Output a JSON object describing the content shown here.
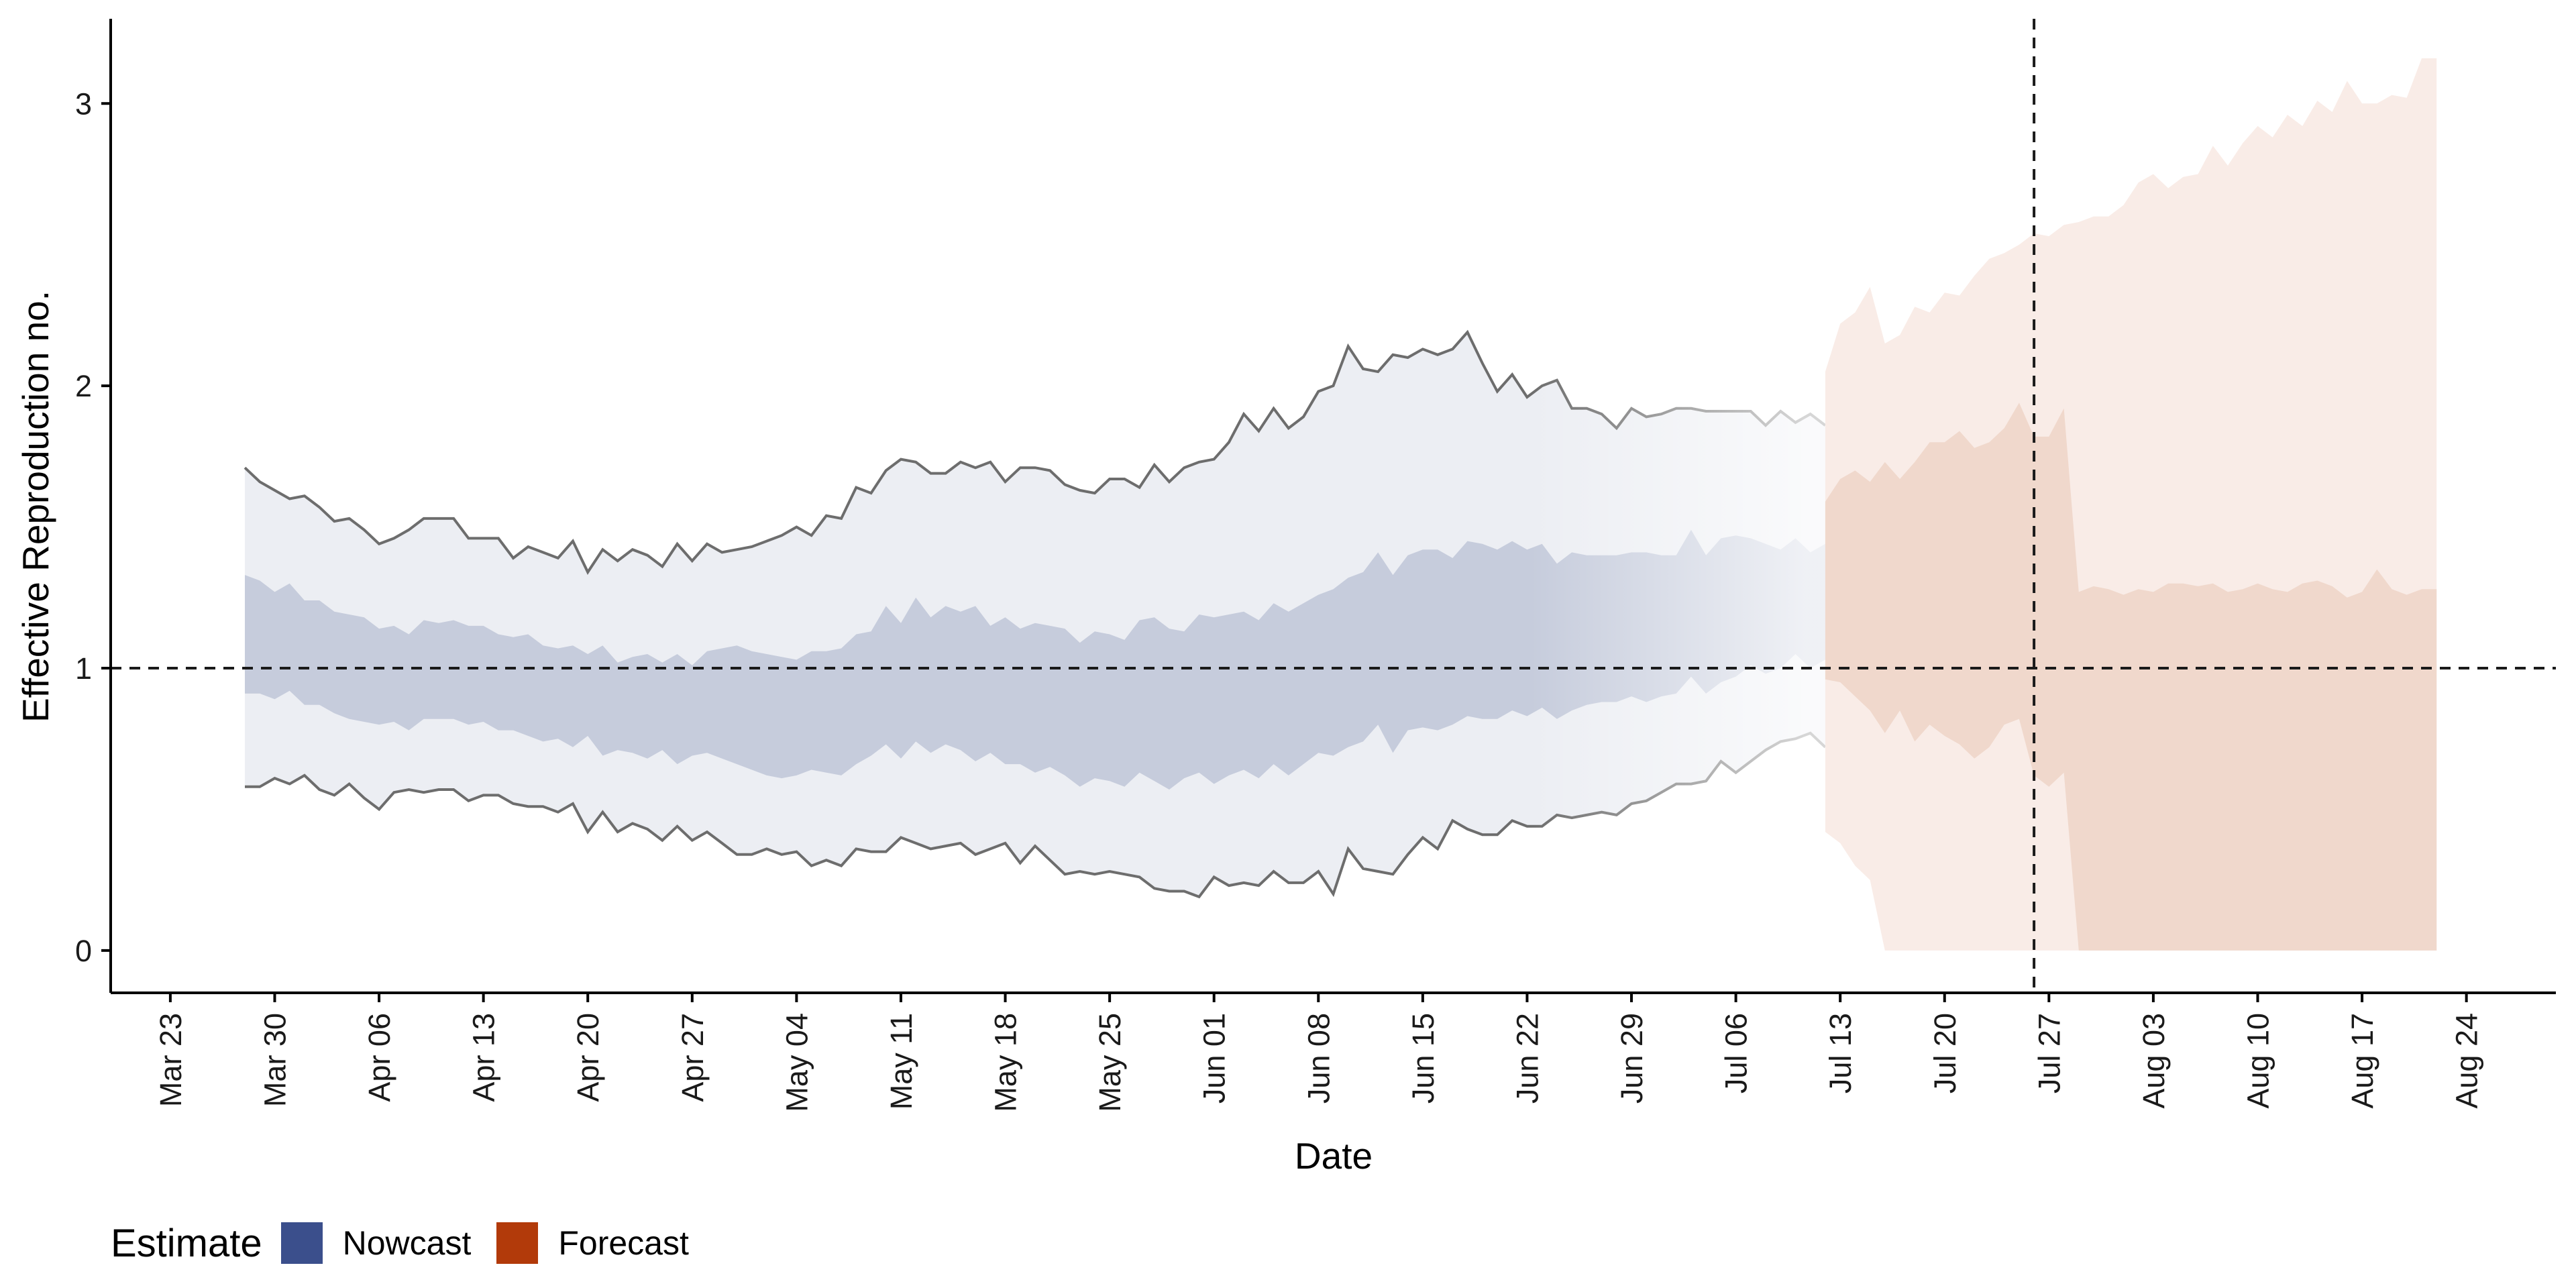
{
  "chart_data": {
    "type": "area",
    "xlabel": "Date",
    "ylabel": "Effective Reproduction no.",
    "x_start": "2020-03-28",
    "xlim": [
      "2020-03-19",
      "2020-08-30"
    ],
    "ylim": [
      -0.15,
      3.3
    ],
    "y_ticks": [
      0,
      1,
      2,
      3
    ],
    "x_tick_labels": [
      "Mar 23",
      "Mar 30",
      "Apr 06",
      "Apr 13",
      "Apr 20",
      "Apr 27",
      "May 04",
      "May 11",
      "May 18",
      "May 25",
      "Jun 01",
      "Jun 08",
      "Jun 15",
      "Jun 22",
      "Jun 29",
      "Jul 06",
      "Jul 13",
      "Jul 20",
      "Jul 27",
      "Aug 03",
      "Aug 10",
      "Aug 17",
      "Aug 24"
    ],
    "reference_lines": {
      "horizontal_y": 1,
      "vertical_date": "2020-07-26"
    },
    "legend": {
      "title": "Estimate",
      "position": "bottom-left",
      "items": [
        {
          "label": "Nowcast",
          "color": "#3b4f8c"
        },
        {
          "label": "Forecast",
          "color": "#b23a0a"
        }
      ]
    },
    "colors": {
      "nowcast_outer": "#eceef3",
      "nowcast_inner": "#c6ccdc",
      "forecast_outer": "#f9ece7",
      "forecast_inner": "#f0d8cc",
      "ci_line": "#6d6d6d",
      "reference": "#1a1a1a",
      "axis": "#000000"
    },
    "series": [
      {
        "name": "Nowcast",
        "kind": "nowcast",
        "outer_upper": [
          1.71,
          1.66,
          1.63,
          1.6,
          1.61,
          1.57,
          1.52,
          1.53,
          1.49,
          1.44,
          1.46,
          1.49,
          1.53,
          1.53,
          1.53,
          1.46,
          1.46,
          1.46,
          1.39,
          1.43,
          1.41,
          1.39,
          1.45,
          1.34,
          1.42,
          1.38,
          1.42,
          1.4,
          1.36,
          1.44,
          1.38,
          1.44,
          1.41,
          1.42,
          1.43,
          1.45,
          1.47,
          1.5,
          1.47,
          1.54,
          1.53,
          1.64,
          1.62,
          1.7,
          1.74,
          1.73,
          1.69,
          1.69,
          1.73,
          1.71,
          1.73,
          1.66,
          1.71,
          1.71,
          1.7,
          1.65,
          1.63,
          1.62,
          1.67,
          1.67,
          1.64,
          1.72,
          1.66,
          1.71,
          1.73,
          1.74,
          1.8,
          1.9,
          1.84,
          1.92,
          1.85,
          1.89,
          1.98,
          2.0,
          2.14,
          2.06,
          2.05,
          2.11,
          2.1,
          2.13,
          2.11,
          2.13,
          2.19,
          2.08,
          1.98,
          2.04,
          1.96,
          2.0,
          2.02,
          1.92,
          1.92,
          1.9,
          1.85,
          1.92,
          1.89,
          1.9,
          1.92,
          1.92,
          1.91,
          1.91,
          1.91,
          1.91,
          1.86,
          1.91,
          1.87,
          1.9,
          1.86
        ],
        "inner_upper": [
          1.33,
          1.31,
          1.27,
          1.3,
          1.24,
          1.24,
          1.2,
          1.19,
          1.18,
          1.14,
          1.15,
          1.12,
          1.17,
          1.16,
          1.17,
          1.15,
          1.15,
          1.12,
          1.11,
          1.12,
          1.08,
          1.07,
          1.08,
          1.05,
          1.08,
          1.02,
          1.04,
          1.05,
          1.02,
          1.05,
          1.01,
          1.06,
          1.07,
          1.08,
          1.06,
          1.05,
          1.04,
          1.03,
          1.06,
          1.06,
          1.07,
          1.12,
          1.13,
          1.22,
          1.16,
          1.25,
          1.18,
          1.22,
          1.2,
          1.22,
          1.15,
          1.18,
          1.14,
          1.16,
          1.15,
          1.14,
          1.09,
          1.13,
          1.12,
          1.1,
          1.17,
          1.18,
          1.14,
          1.13,
          1.19,
          1.18,
          1.19,
          1.2,
          1.17,
          1.23,
          1.2,
          1.23,
          1.26,
          1.28,
          1.32,
          1.34,
          1.41,
          1.33,
          1.4,
          1.42,
          1.42,
          1.39,
          1.45,
          1.44,
          1.42,
          1.45,
          1.42,
          1.44,
          1.37,
          1.41,
          1.4,
          1.4,
          1.4,
          1.41,
          1.41,
          1.4,
          1.4,
          1.49,
          1.4,
          1.46,
          1.47,
          1.46,
          1.44,
          1.42,
          1.46,
          1.41,
          1.44
        ],
        "inner_lower": [
          0.91,
          0.91,
          0.89,
          0.92,
          0.87,
          0.87,
          0.84,
          0.82,
          0.81,
          0.8,
          0.81,
          0.78,
          0.82,
          0.82,
          0.82,
          0.8,
          0.81,
          0.78,
          0.78,
          0.76,
          0.74,
          0.75,
          0.72,
          0.76,
          0.69,
          0.71,
          0.7,
          0.68,
          0.71,
          0.66,
          0.69,
          0.7,
          0.68,
          0.66,
          0.64,
          0.62,
          0.61,
          0.62,
          0.64,
          0.63,
          0.62,
          0.66,
          0.69,
          0.73,
          0.68,
          0.74,
          0.7,
          0.73,
          0.71,
          0.67,
          0.7,
          0.66,
          0.66,
          0.63,
          0.65,
          0.62,
          0.58,
          0.61,
          0.6,
          0.58,
          0.63,
          0.6,
          0.57,
          0.61,
          0.63,
          0.59,
          0.62,
          0.64,
          0.61,
          0.66,
          0.62,
          0.66,
          0.7,
          0.69,
          0.72,
          0.74,
          0.8,
          0.7,
          0.78,
          0.79,
          0.78,
          0.8,
          0.83,
          0.82,
          0.82,
          0.85,
          0.83,
          0.86,
          0.82,
          0.85,
          0.87,
          0.88,
          0.88,
          0.9,
          0.88,
          0.9,
          0.91,
          0.97,
          0.91,
          0.95,
          0.97,
          1.01,
          0.98,
          1.0,
          1.05,
          1.0,
          1.03
        ],
        "outer_lower": [
          0.58,
          0.58,
          0.61,
          0.59,
          0.62,
          0.57,
          0.55,
          0.59,
          0.54,
          0.5,
          0.56,
          0.57,
          0.56,
          0.57,
          0.57,
          0.53,
          0.55,
          0.55,
          0.52,
          0.51,
          0.51,
          0.49,
          0.52,
          0.42,
          0.49,
          0.42,
          0.45,
          0.43,
          0.39,
          0.44,
          0.39,
          0.42,
          0.38,
          0.34,
          0.34,
          0.36,
          0.34,
          0.35,
          0.3,
          0.32,
          0.3,
          0.36,
          0.35,
          0.35,
          0.4,
          0.38,
          0.36,
          0.37,
          0.38,
          0.34,
          0.36,
          0.38,
          0.31,
          0.37,
          0.32,
          0.27,
          0.28,
          0.27,
          0.28,
          0.27,
          0.26,
          0.22,
          0.21,
          0.21,
          0.19,
          0.26,
          0.23,
          0.24,
          0.23,
          0.28,
          0.24,
          0.24,
          0.28,
          0.2,
          0.36,
          0.29,
          0.28,
          0.27,
          0.34,
          0.4,
          0.36,
          0.46,
          0.43,
          0.41,
          0.41,
          0.46,
          0.44,
          0.44,
          0.48,
          0.47,
          0.48,
          0.49,
          0.48,
          0.52,
          0.53,
          0.56,
          0.59,
          0.59,
          0.6,
          0.67,
          0.63,
          0.67,
          0.71,
          0.74,
          0.75,
          0.77,
          0.72
        ]
      },
      {
        "name": "Forecast",
        "kind": "forecast",
        "x_start": "2020-07-12",
        "outer_upper": [
          2.05,
          2.22,
          2.26,
          2.35,
          2.15,
          2.18,
          2.28,
          2.26,
          2.33,
          2.32,
          2.39,
          2.45,
          2.47,
          2.5,
          2.54,
          2.53,
          2.57,
          2.58,
          2.6,
          2.6,
          2.64,
          2.72,
          2.75,
          2.7,
          2.74,
          2.75,
          2.85,
          2.78,
          2.86,
          2.92,
          2.88,
          2.96,
          2.92,
          3.01,
          2.97,
          3.08,
          3.0,
          3.0,
          3.03,
          3.02,
          3.16,
          3.16
        ],
        "inner_upper": [
          1.59,
          1.67,
          1.7,
          1.66,
          1.73,
          1.67,
          1.73,
          1.8,
          1.8,
          1.84,
          1.78,
          1.8,
          1.85,
          1.94,
          1.82,
          1.82,
          1.92,
          1.27,
          1.29,
          1.28,
          1.26,
          1.28,
          1.27,
          1.3,
          1.3,
          1.29,
          1.3,
          1.27,
          1.28,
          1.3,
          1.28,
          1.27,
          1.3,
          1.31,
          1.29,
          1.25,
          1.27,
          1.35,
          1.28,
          1.26,
          1.28,
          1.28
        ],
        "inner_lower": [
          0.96,
          0.95,
          0.9,
          0.85,
          0.77,
          0.85,
          0.74,
          0.8,
          0.76,
          0.73,
          0.68,
          0.72,
          0.8,
          0.82,
          0.62,
          0.58,
          0.63,
          0.0,
          0.0,
          0.0,
          0.0,
          0.0,
          0.0,
          0.0,
          0.0,
          0.0,
          0.0,
          0.0,
          0.0,
          0.0,
          0.0,
          0.0,
          0.0,
          0.0,
          0.0,
          0.0,
          0.0,
          0.0,
          0.0,
          0.0,
          0.0,
          0.0
        ],
        "outer_lower": [
          0.42,
          0.38,
          0.3,
          0.25,
          0.0,
          0.0,
          0.0,
          0.0,
          0.0,
          0.0,
          0.0,
          0.0,
          0.0,
          0.0,
          0.0,
          0.0,
          0.0,
          0.0,
          0.0,
          0.0,
          0.0,
          0.0,
          0.0,
          0.0,
          0.0,
          0.0,
          0.0,
          0.0,
          0.0,
          0.0,
          0.0,
          0.0,
          0.0,
          0.0,
          0.0,
          0.0,
          0.0,
          0.0,
          0.0,
          0.0,
          0.0,
          0.0
        ]
      }
    ]
  }
}
